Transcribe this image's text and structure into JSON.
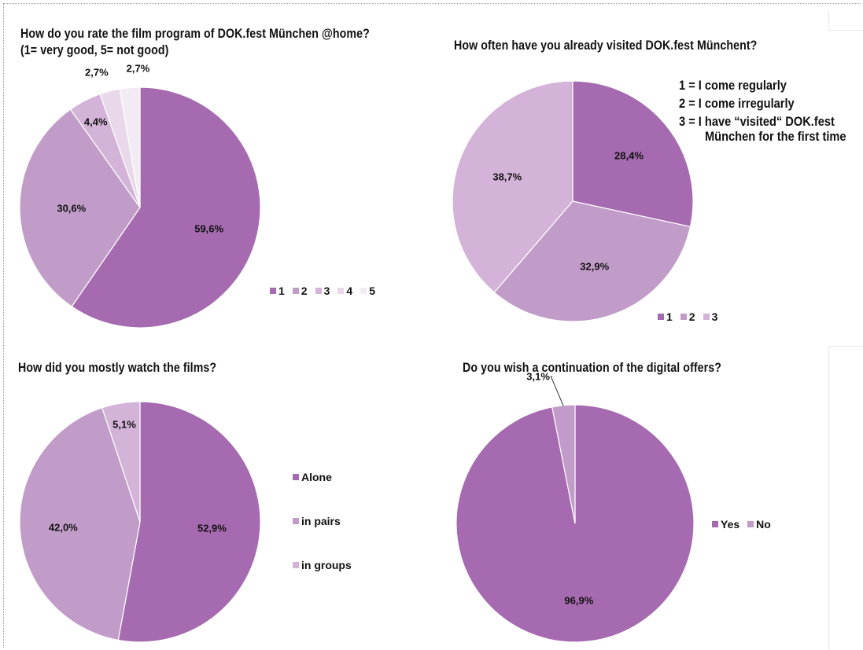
{
  "chart_data": [
    {
      "type": "pie",
      "title": "How do you rate the film program of DOK.fest München @home?",
      "subtitle": "(1= very good, 5= not good)",
      "categories": [
        "1",
        "2",
        "3",
        "4",
        "5"
      ],
      "values": [
        59.6,
        30.6,
        4.4,
        2.7,
        2.7
      ],
      "labels": [
        "59,6%",
        "30,6%",
        "4,4%",
        "2,7%",
        "2,7%"
      ],
      "colors": [
        "#a56aaf",
        "#c29cc9",
        "#d4b3d8",
        "#e8d8ea",
        "#f3ebf4"
      ],
      "legend": "bottom-right"
    },
    {
      "type": "pie",
      "title": "How often have you already visited DOK.fest Münchent?",
      "categories": [
        "1",
        "2",
        "3"
      ],
      "values": [
        28.4,
        32.9,
        38.7
      ],
      "labels": [
        "28,4%",
        "32,9%",
        "38,7%"
      ],
      "colors": [
        "#a56aaf",
        "#c29cc9",
        "#d4b3d8"
      ],
      "key": [
        "1 = I come regularly",
        "2 = I come irregularly",
        "3 = I have “visited“ DOK.fest",
        "München for the first time"
      ],
      "legend": "bottom-right"
    },
    {
      "type": "pie",
      "title": "How did you mostly watch the films?",
      "categories": [
        "Alone",
        "in pairs",
        "in groups"
      ],
      "values": [
        52.9,
        42.0,
        5.1
      ],
      "labels": [
        "52,9%",
        "42,0%",
        "5,1%"
      ],
      "colors": [
        "#a56aaf",
        "#c29cc9",
        "#d4b3d8"
      ],
      "legend": "right"
    },
    {
      "type": "pie",
      "title": "Do you wish a continuation of the digital offers?",
      "categories": [
        "Yes",
        "No"
      ],
      "values": [
        96.9,
        3.1
      ],
      "labels": [
        "96,9%",
        "3,1%"
      ],
      "colors": [
        "#a56aaf",
        "#c29cc9"
      ],
      "legend": "right"
    }
  ]
}
